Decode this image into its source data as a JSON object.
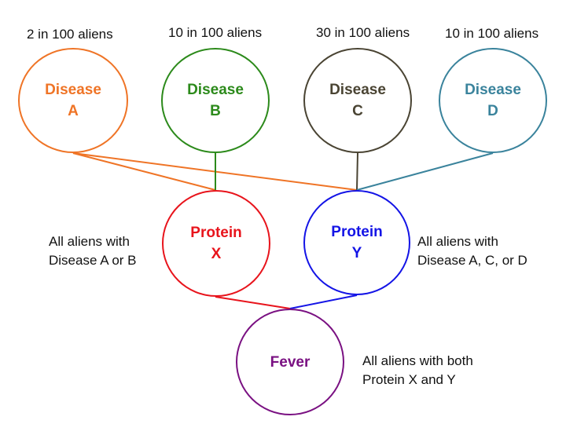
{
  "diseases": [
    {
      "line1": "Disease",
      "line2": "A",
      "frequency": "2 in 100 aliens",
      "color": "#ef7426"
    },
    {
      "line1": "Disease",
      "line2": "B",
      "frequency": "10 in 100 aliens",
      "color": "#2c8a1b"
    },
    {
      "line1": "Disease",
      "line2": "C",
      "frequency": "30 in 100 aliens",
      "color": "#4a4433"
    },
    {
      "line1": "Disease",
      "line2": "D",
      "frequency": "10 in 100 aliens",
      "color": "#3a839c"
    }
  ],
  "proteins": [
    {
      "line1": "Protein",
      "line2": "X",
      "note_line1": "All aliens with",
      "note_line2": "Disease A or B",
      "color": "#e8141c"
    },
    {
      "line1": "Protein",
      "line2": "Y",
      "note_line1": "All aliens with",
      "note_line2": "Disease A, C, or D",
      "color": "#1414e6"
    }
  ],
  "fever": {
    "label": "Fever",
    "note_line1": "All aliens with both",
    "note_line2": "Protein X and Y",
    "color": "#7a1182"
  },
  "links": [
    {
      "from": "Disease A",
      "to": "Protein X",
      "color": "#ef7426"
    },
    {
      "from": "Disease A",
      "to": "Protein Y",
      "color": "#ef7426"
    },
    {
      "from": "Disease B",
      "to": "Protein X",
      "color": "#2c8a1b"
    },
    {
      "from": "Disease C",
      "to": "Protein Y",
      "color": "#4a4433"
    },
    {
      "from": "Disease D",
      "to": "Protein Y",
      "color": "#3a839c"
    },
    {
      "from": "Protein X",
      "to": "Fever",
      "color": "#e8141c"
    },
    {
      "from": "Protein Y",
      "to": "Fever",
      "color": "#1414e6"
    }
  ]
}
